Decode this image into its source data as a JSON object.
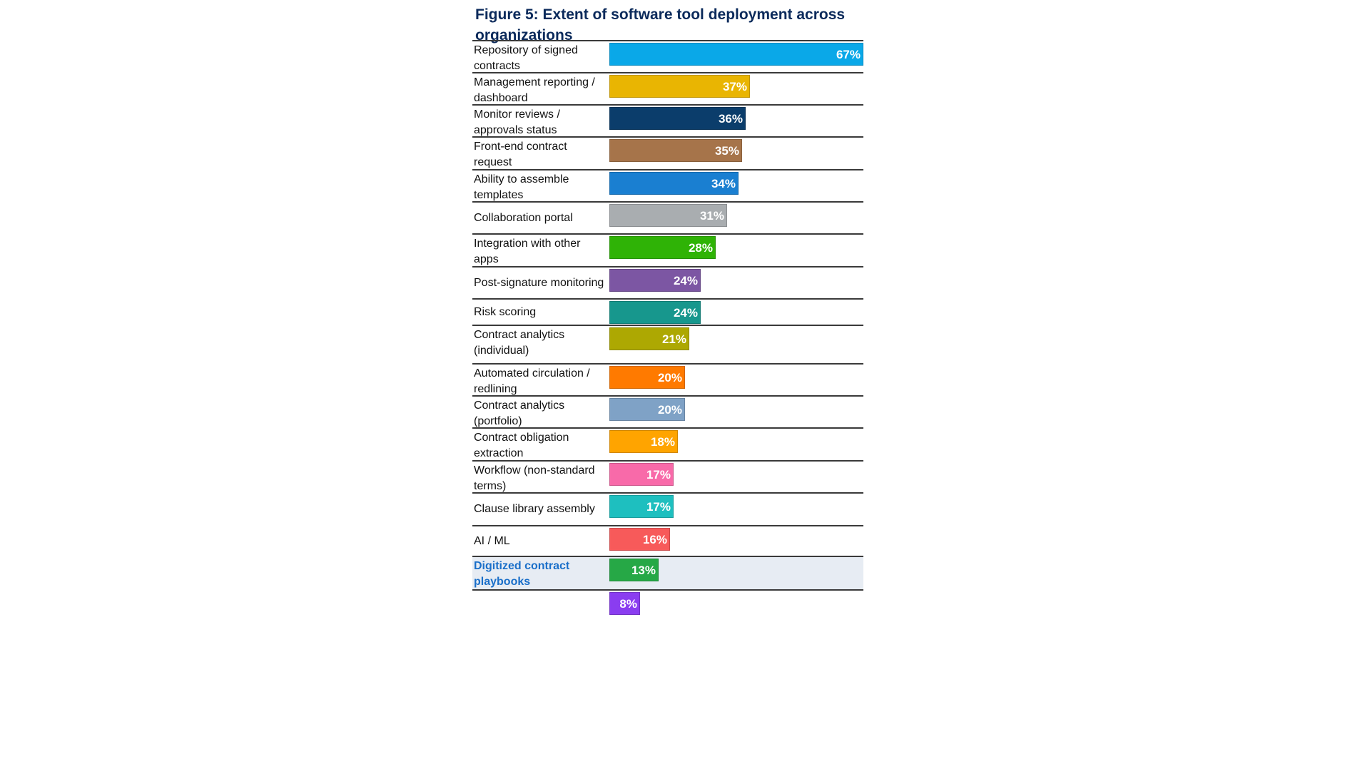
{
  "chart_data": {
    "type": "bar",
    "orientation": "horizontal",
    "title": "Figure 5: Extent of software tool deployment across organizations",
    "xlabel": "",
    "ylabel": "",
    "xlim": [
      0,
      67
    ],
    "grid": false,
    "legend": "none",
    "categories": [
      "Repository of signed contracts",
      "Management reporting / dashboard",
      "Monitor reviews / approvals status",
      "Front-end contract request",
      "Ability to assemble templates",
      "Collaboration portal",
      "Integration with other apps",
      "Post-signature monitoring",
      "Risk scoring",
      "Contract analytics (individual)",
      "Automated circulation / redlining",
      "Contract analytics (portfolio)",
      "Contract obligation extraction",
      "Workflow (non-standard terms)",
      "Clause library assembly",
      "AI / ML",
      "Digitized contract playbooks",
      ""
    ],
    "values": [
      67,
      37,
      36,
      35,
      34,
      31,
      28,
      24,
      24,
      21,
      20,
      20,
      18,
      17,
      17,
      16,
      13,
      8
    ],
    "value_labels": [
      "67%",
      "37%",
      "36%",
      "35%",
      "34%",
      "31%",
      "28%",
      "24%",
      "24%",
      "21%",
      "20%",
      "20%",
      "18%",
      "17%",
      "17%",
      "16%",
      "13%",
      "8%"
    ],
    "colors": [
      "#0aa8e8",
      "#e9b502",
      "#0b3d6b",
      "#a6744a",
      "#1a7fd1",
      "#a9adb0",
      "#2fb306",
      "#7c56a3",
      "#17978d",
      "#ada802",
      "#ff7a00",
      "#7fa2c6",
      "#ffa400",
      "#f86aa9",
      "#1ebfbf",
      "#f75a5a",
      "#26a846",
      "#8a3df0"
    ],
    "highlighted_category": "Digitized contract playbooks"
  }
}
